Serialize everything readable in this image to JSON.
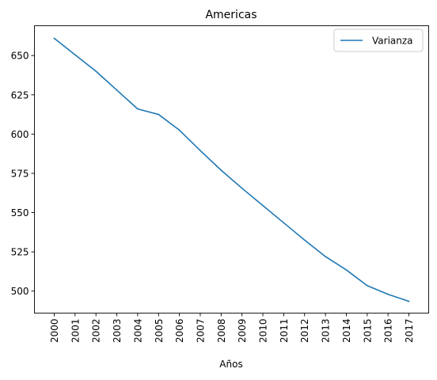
{
  "chart_data": {
    "type": "line",
    "title": "Americas",
    "xlabel": "Años",
    "ylabel": "",
    "categories": [
      "2000",
      "2001",
      "2002",
      "2003",
      "2004",
      "2005",
      "2006",
      "2007",
      "2008",
      "2009",
      "2010",
      "2011",
      "2012",
      "2013",
      "2014",
      "2015",
      "2016",
      "2017"
    ],
    "series": [
      {
        "name": "Varianza",
        "color": "#1f77b4",
        "values": [
          661,
          650.5,
          640,
          628,
          616,
          612.5,
          602.5,
          589.5,
          577,
          565.5,
          554.5,
          543.5,
          532.5,
          522,
          513.5,
          503.5,
          498,
          493.5
        ]
      }
    ],
    "yticks": [
      500,
      525,
      550,
      575,
      600,
      625,
      650
    ],
    "ylim": [
      486,
      669
    ],
    "grid": false,
    "legend": {
      "position": "top-right"
    }
  }
}
